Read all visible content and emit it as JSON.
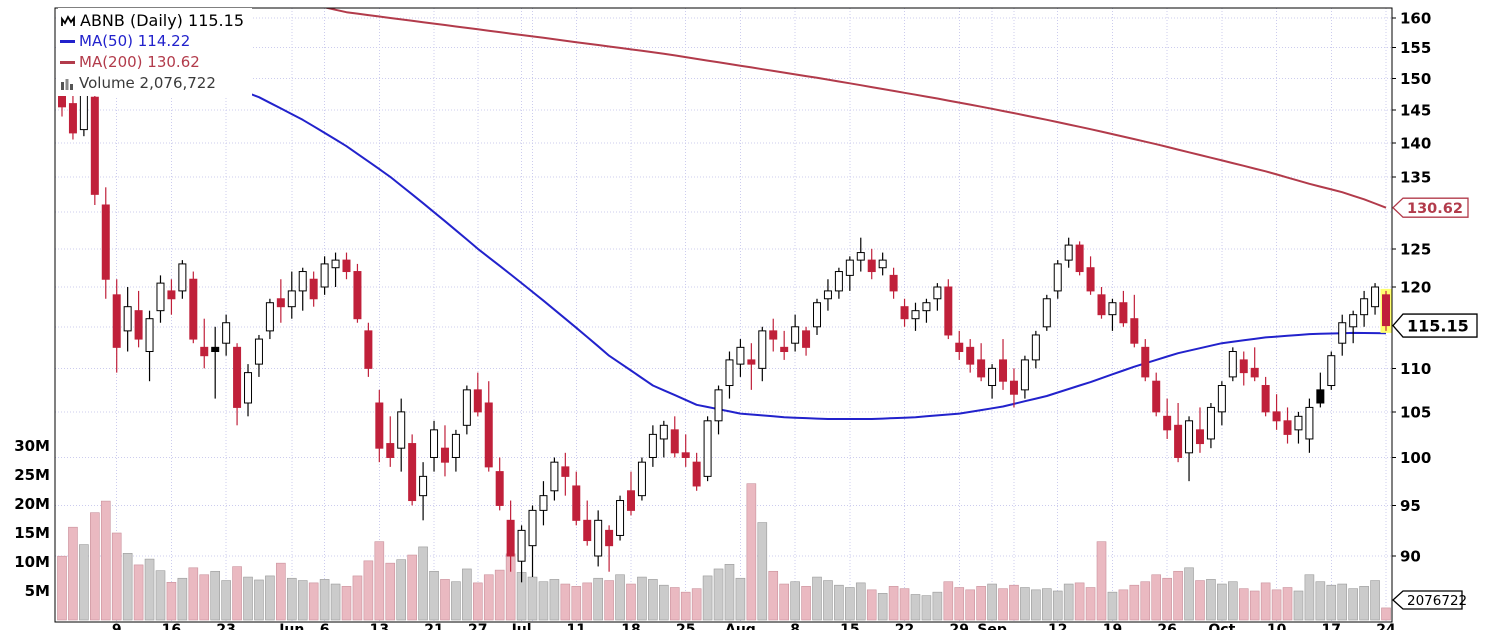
{
  "legend": {
    "symbol_line": "ABNB (Daily) 115.15",
    "ma50_label": "MA(50) 114.22",
    "ma200_label": "MA(200) 130.62",
    "volume_label": "Volume 2,076,722"
  },
  "colors": {
    "up_border": "#000000",
    "up_fill": "#ffffff",
    "down": "#c0203a",
    "black_fill": "#000000",
    "ma50": "#2222cc",
    "ma200": "#b23b4b",
    "grid": "#ccccee",
    "vol_up": "#cbcbcb",
    "vol_up_border": "#9a9a9a",
    "vol_down": "#eab9c1",
    "vol_down_border": "#c9909b",
    "highlight": "#ffff70",
    "axis_text": "#000000"
  },
  "chart_data": {
    "type": "candlestick",
    "symbol": "ABNB",
    "timeframe": "Daily",
    "title": "ABNB (Daily) 115.15",
    "last_price": 115.15,
    "ma50_last": 114.22,
    "ma200_last": 130.62,
    "last_volume": 2076722,
    "scale": "log",
    "y_axis": {
      "grid_prices": [
        90,
        95,
        100,
        105,
        110,
        115,
        120,
        125,
        130,
        135,
        140,
        145,
        150,
        155,
        160
      ],
      "labels": [
        {
          "v": 160,
          "label": "160"
        },
        {
          "v": 155,
          "label": "155"
        },
        {
          "v": 150,
          "label": "150"
        },
        {
          "v": 145,
          "label": "145"
        },
        {
          "v": 140,
          "label": "140"
        },
        {
          "v": 135,
          "label": "135"
        },
        {
          "v": 125,
          "label": "125"
        },
        {
          "v": 120,
          "label": "120"
        },
        {
          "v": 110,
          "label": "110"
        },
        {
          "v": 105,
          "label": "105"
        },
        {
          "v": 100,
          "label": "100"
        },
        {
          "v": 95,
          "label": "95"
        },
        {
          "v": 90,
          "label": "90"
        }
      ]
    },
    "volume_axis": {
      "unit": "millions_of_shares",
      "labels": [
        {
          "v": 30,
          "label": "30M"
        },
        {
          "v": 25,
          "label": "25M"
        },
        {
          "v": 20,
          "label": "20M"
        },
        {
          "v": 15,
          "label": "15M"
        },
        {
          "v": 10,
          "label": "10M"
        },
        {
          "v": 5,
          "label": "5M"
        }
      ]
    },
    "x_ticks": [
      {
        "i": 5,
        "label": "9"
      },
      {
        "i": 10,
        "label": "16"
      },
      {
        "i": 15,
        "label": "23"
      },
      {
        "i": 21,
        "label": "Jun"
      },
      {
        "i": 24,
        "label": "6"
      },
      {
        "i": 29,
        "label": "13"
      },
      {
        "i": 34,
        "label": "21"
      },
      {
        "i": 38,
        "label": "27"
      },
      {
        "i": 42,
        "label": "Jul"
      },
      {
        "i": 47,
        "label": "11"
      },
      {
        "i": 52,
        "label": "18"
      },
      {
        "i": 57,
        "label": "25"
      },
      {
        "i": 62,
        "label": "Aug"
      },
      {
        "i": 67,
        "label": "8"
      },
      {
        "i": 72,
        "label": "15"
      },
      {
        "i": 77,
        "label": "22"
      },
      {
        "i": 82,
        "label": "29"
      },
      {
        "i": 85,
        "label": "Sep"
      },
      {
        "i": 91,
        "label": "12"
      },
      {
        "i": 96,
        "label": "19"
      },
      {
        "i": 101,
        "label": "26"
      },
      {
        "i": 106,
        "label": "Oct"
      },
      {
        "i": 111,
        "label": "10"
      },
      {
        "i": 116,
        "label": "17"
      },
      {
        "i": 121,
        "label": "24"
      }
    ],
    "grid_only_ticks": [
      43,
      87
    ],
    "markers": {
      "last_price": {
        "value": 115.15,
        "label": "115.15"
      },
      "ma200": {
        "value": 130.62,
        "label": "130.62"
      },
      "volume": {
        "label": "2076722",
        "value_millions": 2.08
      }
    },
    "ohlc_columns": [
      "date",
      "open",
      "high",
      "low",
      "close",
      "volume_millions"
    ],
    "ohlc": [
      [
        "May 2",
        149.5,
        151.5,
        144,
        145.5,
        11
      ],
      [
        "May 3",
        146,
        148,
        140.5,
        141.5,
        16
      ],
      [
        "May 4",
        142,
        149.5,
        141,
        148.5,
        13
      ],
      [
        "May 5",
        147,
        147.5,
        131,
        132.5,
        18.5
      ],
      [
        "May 6",
        131,
        133.5,
        118.5,
        121,
        20.5
      ],
      [
        "May 9",
        119,
        121,
        109.5,
        112.5,
        15
      ],
      [
        "May 10",
        114.5,
        120,
        112,
        117.5,
        11.5
      ],
      [
        "May 11",
        117,
        119.5,
        112.5,
        113.5,
        9.5
      ],
      [
        "May 12",
        112,
        117,
        108.5,
        116,
        10.5
      ],
      [
        "May 13",
        117,
        121.5,
        115.5,
        120.5,
        8.5
      ],
      [
        "May 16",
        119.5,
        121,
        116.5,
        118.5,
        6.5
      ],
      [
        "May 17",
        119.5,
        123.5,
        118.5,
        123,
        7.2
      ],
      [
        "May 18",
        121,
        122,
        113,
        113.5,
        9
      ],
      [
        "May 19",
        112.5,
        116,
        110,
        111.5,
        7.8
      ],
      [
        "May 20",
        112.5,
        115,
        106.5,
        112,
        8.4
      ],
      [
        "May 23",
        113,
        116.5,
        111.5,
        115.5,
        6.8
      ],
      [
        "May 24",
        112.5,
        113,
        103.5,
        105.5,
        9.2
      ],
      [
        "May 25",
        106,
        110.5,
        104.5,
        109.5,
        7.4
      ],
      [
        "May 26",
        110.5,
        114,
        109,
        113.5,
        6.9
      ],
      [
        "May 27",
        114.5,
        118.5,
        113.5,
        118,
        7.6
      ],
      [
        "May 31",
        118.5,
        121,
        115.5,
        117.5,
        9.8
      ],
      [
        "Jun 1",
        117.5,
        122,
        116,
        119.5,
        7.2
      ],
      [
        "Jun 2",
        119.5,
        122.5,
        117,
        122,
        6.8
      ],
      [
        "Jun 3",
        121,
        122,
        117.5,
        118.5,
        6.4
      ],
      [
        "Jun 6",
        120,
        124,
        119,
        123,
        7
      ],
      [
        "Jun 7",
        122.5,
        124.5,
        120,
        123.5,
        6.2
      ],
      [
        "Jun 8",
        123.5,
        124.5,
        121,
        122,
        5.8
      ],
      [
        "Jun 9",
        122,
        123,
        115.5,
        116,
        7.6
      ],
      [
        "Jun 10",
        114.5,
        115.5,
        109,
        110,
        10.2
      ],
      [
        "Jun 13",
        106,
        107.5,
        99.5,
        101,
        13.5
      ],
      [
        "Jun 14",
        101.5,
        104.5,
        99,
        100,
        9.8
      ],
      [
        "Jun 15",
        101,
        106.5,
        98.5,
        105,
        10.4
      ],
      [
        "Jun 16",
        101.5,
        102.5,
        95,
        95.5,
        11.2
      ],
      [
        "Jun 17",
        96,
        99.5,
        93.5,
        98,
        12.6
      ],
      [
        "Jun 21",
        100,
        104,
        98.5,
        103,
        8.4
      ],
      [
        "Jun 22",
        101,
        103.5,
        98,
        99.5,
        7
      ],
      [
        "Jun 23",
        100,
        103,
        98.5,
        102.5,
        6.6
      ],
      [
        "Jun 24",
        103.5,
        108,
        102.5,
        107.5,
        8.8
      ],
      [
        "Jun 27",
        107.5,
        109.5,
        104.5,
        105,
        6.4
      ],
      [
        "Jun 28",
        106,
        108.5,
        98.5,
        99,
        7.8
      ],
      [
        "Jun 29",
        98.5,
        100,
        94.5,
        95,
        8.6
      ],
      [
        "Jun 30",
        93.5,
        95.5,
        88.5,
        90,
        11.4
      ],
      [
        "Jul 1",
        89.5,
        93,
        87.5,
        92.5,
        8.2
      ],
      [
        "Jul 5",
        91,
        95,
        88,
        94.5,
        7.4
      ],
      [
        "Jul 6",
        94.5,
        97.5,
        93,
        96,
        6.6
      ],
      [
        "Jul 7",
        96.5,
        100,
        95.5,
        99.5,
        7
      ],
      [
        "Jul 8",
        99,
        100.5,
        96,
        98,
        6.2
      ],
      [
        "Jul 11",
        97,
        98.5,
        93,
        93.5,
        5.8
      ],
      [
        "Jul 12",
        93.5,
        95.5,
        91,
        91.5,
        6.4
      ],
      [
        "Jul 13",
        90,
        94.5,
        89,
        93.5,
        7.2
      ],
      [
        "Jul 14",
        92.5,
        93,
        88.5,
        91,
        6.8
      ],
      [
        "Jul 15",
        92,
        96,
        91.5,
        95.5,
        7.8
      ],
      [
        "Jul 18",
        96.5,
        98.5,
        94,
        94.5,
        6.2
      ],
      [
        "Jul 19",
        96,
        100,
        95.5,
        99.5,
        7.4
      ],
      [
        "Jul 20",
        100,
        103.5,
        99,
        102.5,
        7
      ],
      [
        "Jul 21",
        102,
        104,
        100,
        103.5,
        6
      ],
      [
        "Jul 22",
        103,
        104.5,
        100,
        100.5,
        5.6
      ],
      [
        "Jul 25",
        100.5,
        102.5,
        99,
        100,
        4.8
      ],
      [
        "Jul 26",
        99.5,
        100.5,
        96.5,
        97,
        5.4
      ],
      [
        "Jul 27",
        98,
        104.5,
        97.5,
        104,
        7.6
      ],
      [
        "Jul 28",
        104,
        108,
        102.5,
        107.5,
        8.8
      ],
      [
        "Jul 29",
        108,
        112,
        106.5,
        111,
        9.6
      ],
      [
        "Aug 1",
        110.5,
        113.5,
        109,
        112.5,
        7.2
      ],
      [
        "Aug 2",
        111,
        113,
        107.5,
        110.5,
        23.5
      ],
      [
        "Aug 3",
        110,
        115,
        108.5,
        114.5,
        16.8
      ],
      [
        "Aug 4",
        114.5,
        116,
        112,
        113.5,
        8.4
      ],
      [
        "Aug 5",
        112.5,
        114.5,
        111,
        112,
        6.2
      ],
      [
        "Aug 8",
        113,
        116.5,
        112,
        115,
        6.6
      ],
      [
        "Aug 9",
        114.5,
        115,
        111.5,
        112.5,
        5.8
      ],
      [
        "Aug 10",
        115,
        118.5,
        114,
        118,
        7.4
      ],
      [
        "Aug 11",
        118.5,
        121,
        117,
        119.5,
        6.8
      ],
      [
        "Aug 12",
        119.5,
        122.5,
        118.5,
        122,
        6
      ],
      [
        "Aug 15",
        121.5,
        124,
        119.5,
        123.5,
        5.6
      ],
      [
        "Aug 16",
        123.5,
        126.5,
        122,
        124.5,
        6.4
      ],
      [
        "Aug 17",
        123.5,
        125,
        121,
        122,
        5.2
      ],
      [
        "Aug 18",
        122.5,
        124.5,
        121.5,
        123.5,
        4.6
      ],
      [
        "Aug 19",
        121.5,
        122.5,
        118.5,
        119.5,
        5.8
      ],
      [
        "Aug 22",
        117.5,
        118.5,
        115,
        116,
        5.4
      ],
      [
        "Aug 23",
        116,
        118,
        114.5,
        117,
        4.4
      ],
      [
        "Aug 24",
        117,
        118.5,
        115.5,
        118,
        4.2
      ],
      [
        "Aug 25",
        118.5,
        120.5,
        117,
        120,
        4.8
      ],
      [
        "Aug 26",
        120,
        121,
        113.5,
        114,
        6.6
      ],
      [
        "Aug 29",
        113,
        114.5,
        111,
        112,
        5.6
      ],
      [
        "Aug 30",
        112.5,
        113.5,
        109.5,
        110.5,
        5.2
      ],
      [
        "Aug 31",
        111,
        113,
        108.5,
        109,
        5.8
      ],
      [
        "Sep 1",
        108,
        110.5,
        106.5,
        110,
        6.2
      ],
      [
        "Sep 2",
        111,
        113.5,
        107.5,
        108.5,
        5.4
      ],
      [
        "Sep 6",
        108.5,
        110,
        105.5,
        107,
        6
      ],
      [
        "Sep 7",
        107.5,
        111.5,
        106.5,
        111,
        5.6
      ],
      [
        "Sep 8",
        111,
        114.5,
        110,
        114,
        5.2
      ],
      [
        "Sep 9",
        115,
        119,
        114.5,
        118.5,
        5.4
      ],
      [
        "Sep 12",
        119.5,
        123.5,
        118.5,
        123,
        5
      ],
      [
        "Sep 13",
        123.5,
        126.5,
        122.5,
        125.5,
        6.2
      ],
      [
        "Sep 14",
        125.5,
        126,
        121.5,
        122,
        6.4
      ],
      [
        "Sep 15",
        122.5,
        124,
        119,
        119.5,
        5.6
      ],
      [
        "Sep 16",
        119,
        120,
        116,
        116.5,
        13.5
      ],
      [
        "Sep 19",
        116.5,
        118.5,
        114.5,
        118,
        4.8
      ],
      [
        "Sep 20",
        118,
        119.5,
        115,
        115.5,
        5.2
      ],
      [
        "Sep 21",
        116,
        119,
        112.5,
        113,
        6
      ],
      [
        "Sep 22",
        112.5,
        113.5,
        108.5,
        109,
        6.6
      ],
      [
        "Sep 23",
        108.5,
        109.5,
        104.5,
        105,
        7.8
      ],
      [
        "Sep 26",
        104.5,
        106.5,
        102,
        103,
        7.2
      ],
      [
        "Sep 27",
        103.5,
        106,
        99.5,
        100,
        8.4
      ],
      [
        "Sep 28",
        100.5,
        104.5,
        97.5,
        104,
        9
      ],
      [
        "Sep 29",
        103,
        105.5,
        100.5,
        101.5,
        6.8
      ],
      [
        "Sep 30",
        102,
        106,
        101,
        105.5,
        7
      ],
      [
        "Oct 3",
        105,
        108.5,
        103.5,
        108,
        6.2
      ],
      [
        "Oct 4",
        109,
        112.5,
        108.5,
        112,
        6.6
      ],
      [
        "Oct 5",
        111,
        112,
        108,
        109.5,
        5.4
      ],
      [
        "Oct 6",
        110,
        112.5,
        108.5,
        109,
        5
      ],
      [
        "Oct 7",
        108,
        109,
        104.5,
        105,
        6.4
      ],
      [
        "Oct 10",
        105,
        107,
        103,
        104,
        5.2
      ],
      [
        "Oct 11",
        104,
        105.5,
        101.5,
        102.5,
        5.6
      ],
      [
        "Oct 12",
        103,
        105,
        101.5,
        104.5,
        5
      ],
      [
        "Oct 13",
        102,
        106.5,
        100.5,
        105.5,
        7.8
      ],
      [
        "Oct 14",
        107.5,
        109.5,
        105.5,
        106,
        6.6
      ],
      [
        "Oct 17",
        108,
        112,
        107.5,
        111.5,
        6
      ],
      [
        "Oct 18",
        113,
        116.5,
        111.5,
        115.5,
        6.2
      ],
      [
        "Oct 19",
        115,
        117,
        113,
        116.5,
        5.4
      ],
      [
        "Oct 20",
        116.5,
        119.5,
        115,
        118.5,
        5.8
      ],
      [
        "Oct 21",
        117.5,
        120.5,
        116.5,
        120,
        6.8
      ],
      [
        "Oct 24",
        119,
        119.5,
        114.5,
        115.15,
        2.08
      ]
    ],
    "ma50_anchors": [
      [
        0,
        158
      ],
      [
        6,
        155
      ],
      [
        12,
        151
      ],
      [
        18,
        147
      ],
      [
        22,
        143.5
      ],
      [
        26,
        139.5
      ],
      [
        30,
        135
      ],
      [
        34,
        130
      ],
      [
        38,
        125
      ],
      [
        42,
        120.5
      ],
      [
        46,
        116
      ],
      [
        50,
        111.5
      ],
      [
        54,
        108
      ],
      [
        58,
        105.8
      ],
      [
        62,
        104.8
      ],
      [
        66,
        104.4
      ],
      [
        70,
        104.2
      ],
      [
        74,
        104.2
      ],
      [
        78,
        104.4
      ],
      [
        82,
        104.8
      ],
      [
        86,
        105.6
      ],
      [
        90,
        106.8
      ],
      [
        94,
        108.4
      ],
      [
        98,
        110.2
      ],
      [
        102,
        111.8
      ],
      [
        106,
        113
      ],
      [
        110,
        113.7
      ],
      [
        114,
        114.1
      ],
      [
        118,
        114.25
      ],
      [
        121,
        114.22
      ]
    ],
    "ma200_anchors": [
      [
        0,
        168
      ],
      [
        10,
        166
      ],
      [
        20,
        163.5
      ],
      [
        26,
        161
      ],
      [
        30,
        160
      ],
      [
        35,
        158.8
      ],
      [
        40,
        157.6
      ],
      [
        45,
        156.4
      ],
      [
        50,
        155.2
      ],
      [
        55,
        154
      ],
      [
        60,
        152.6
      ],
      [
        65,
        151.2
      ],
      [
        70,
        149.8
      ],
      [
        75,
        148.3
      ],
      [
        80,
        146.8
      ],
      [
        85,
        145.2
      ],
      [
        90,
        143.5
      ],
      [
        95,
        141.7
      ],
      [
        100,
        139.8
      ],
      [
        105,
        137.8
      ],
      [
        110,
        135.8
      ],
      [
        114,
        134
      ],
      [
        117,
        132.8
      ],
      [
        119,
        131.8
      ],
      [
        121,
        130.62
      ]
    ]
  }
}
